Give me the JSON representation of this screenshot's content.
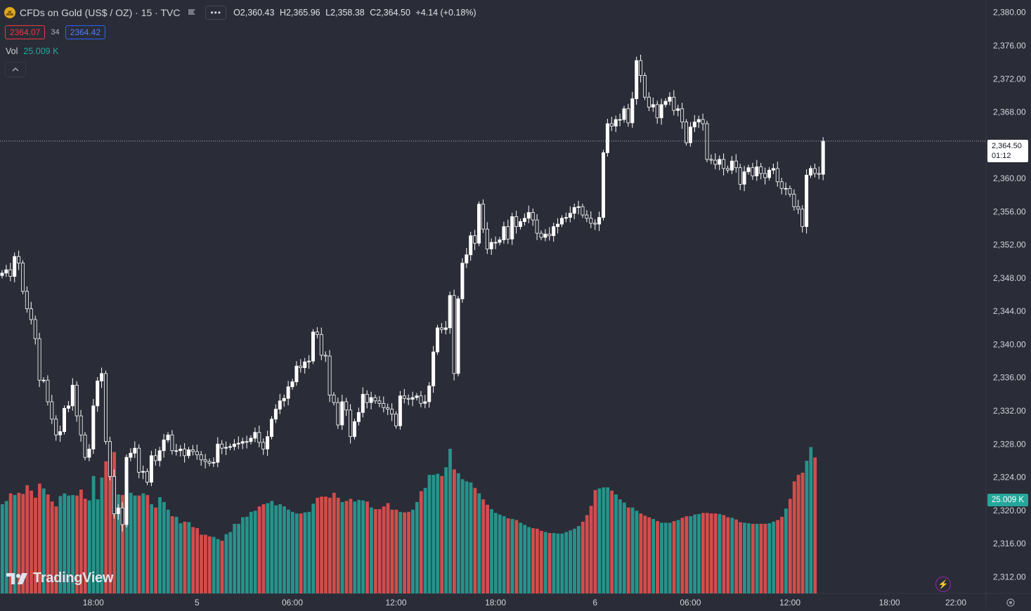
{
  "symbol": {
    "title": "CFDs on Gold (US$ / OZ) · 15 · TVC",
    "more": "•••",
    "icon": "gold-bars-icon"
  },
  "ohlc": {
    "open": "O2,360.43",
    "high": "H2,365.96",
    "low": "L2,358.38",
    "close": "C2,364.50",
    "change": "+4.14 (+0.18%)"
  },
  "trade": {
    "sell": "2364.07",
    "spread": "34",
    "buy": "2364.42"
  },
  "volume": {
    "label": "Vol",
    "value": "25.009 K",
    "axis_label": "25.009 K"
  },
  "last_price": {
    "value": "2,364.50",
    "countdown": "01:12"
  },
  "branding": {
    "name": "TradingView"
  },
  "colors": {
    "background": "#2a2c37",
    "up": "#ffffff",
    "down": "#ffffff",
    "vol_up": "#26a69a",
    "vol_down": "#ef5350",
    "text": "#d1d4dc"
  },
  "chart_data": {
    "type": "candlestick",
    "interval": "15",
    "y_axis": {
      "ticks": [
        "2,380.00",
        "2,376.00",
        "2,372.00",
        "2,368.00",
        "2,364.00",
        "2,360.00",
        "2,356.00",
        "2,352.00",
        "2,348.00",
        "2,344.00",
        "2,340.00",
        "2,336.00",
        "2,332.00",
        "2,328.00",
        "2,324.00",
        "2,320.00",
        "2,316.00",
        "2,312.00"
      ],
      "ylim": [
        2310.0,
        2381.5
      ]
    },
    "x_axis": {
      "ticks": [
        "18:00",
        "5",
        "06:00",
        "12:00",
        "18:00",
        "6",
        "06:00",
        "12:00",
        "18:00",
        "22:00"
      ]
    },
    "closes": [
      2348.6,
      2349.0,
      2348.2,
      2350.6,
      2349.8,
      2346.4,
      2344.3,
      2343.0,
      2340.7,
      2335.7,
      2335.7,
      2333.1,
      2331.0,
      2329.1,
      2329.5,
      2332.3,
      2332.6,
      2335.1,
      2331.4,
      2329.1,
      2326.4,
      2327.4,
      2332.6,
      2335.6,
      2336.5,
      2328.3,
      2324.1,
      2319.6,
      2320.3,
      2318.3,
      2326.4,
      2326.9,
      2327.5,
      2324.6,
      2324.7,
      2323.4,
      2326.6,
      2326.0,
      2327.2,
      2328.5,
      2329.1,
      2327.2,
      2327.2,
      2327.4,
      2326.6,
      2327.3,
      2327.1,
      2326.7,
      2326.1,
      2325.9,
      2325.7,
      2325.8,
      2328.0,
      2327.5,
      2327.6,
      2327.7,
      2328.0,
      2328.1,
      2328.3,
      2328.3,
      2328.7,
      2329.4,
      2328.2,
      2327.4,
      2328.9,
      2331.0,
      2332.2,
      2333.2,
      2333.5,
      2334.9,
      2335.5,
      2337.4,
      2337.2,
      2337.9,
      2338.0,
      2341.5,
      2341.2,
      2338.7,
      2338.6,
      2333.9,
      2333.0,
      2330.3,
      2333.1,
      2332.1,
      2328.9,
      2330.7,
      2331.8,
      2334.0,
      2333.0,
      2333.6,
      2333.2,
      2332.9,
      2332.4,
      2332.2,
      2331.6,
      2330.2,
      2333.8,
      2333.5,
      2333.4,
      2333.6,
      2333.8,
      2332.9,
      2333.1,
      2335.0,
      2339.1,
      2342.0,
      2341.8,
      2342.0,
      2345.9,
      2336.5,
      2345.5,
      2349.8,
      2350.8,
      2353.1,
      2352.2,
      2356.9,
      2353.9,
      2351.5,
      2352.3,
      2352.3,
      2352.6,
      2354.2,
      2352.7,
      2355.4,
      2354.2,
      2354.8,
      2355.2,
      2355.9,
      2355.0,
      2353.4,
      2352.9,
      2353.3,
      2353.1,
      2354.2,
      2354.5,
      2355.2,
      2355.3,
      2355.8,
      2356.5,
      2356.6,
      2355.6,
      2355.2,
      2354.6,
      2354.5,
      2355.3,
      2363.1,
      2366.6,
      2366.3,
      2367.1,
      2367.1,
      2368.4,
      2366.7,
      2369.6,
      2374.2,
      2372.4,
      2369.8,
      2368.6,
      2368.9,
      2367.3,
      2368.9,
      2369.3,
      2369.8,
      2368.2,
      2368.4,
      2366.8,
      2364.3,
      2366.2,
      2366.8,
      2367.1,
      2366.6,
      2362.3,
      2362.2,
      2361.7,
      2362.3,
      2361.2,
      2361.0,
      2362.1,
      2361.3,
      2359.3,
      2360.8,
      2361.3,
      2360.3,
      2361.4,
      2360.6,
      2360.1,
      2361.0,
      2361.2,
      2359.6,
      2358.8,
      2358.8,
      2358.1,
      2356.6,
      2356.3,
      2354.2,
      2360.4,
      2361.2,
      2360.6,
      2360.5,
      2364.5
    ],
    "volumes": [
      16.4,
      17.0,
      18.4,
      18.1,
      18.5,
      18.3,
      19.9,
      18.9,
      17.6,
      20.2,
      19.3,
      18.2,
      16.9,
      16.0,
      17.9,
      18.4,
      18.0,
      18.1,
      18.0,
      19.1,
      17.4,
      17.1,
      21.6,
      17.3,
      21.3,
      24.3,
      26.1,
      26.0,
      18.2,
      18.1,
      19.7,
      18.5,
      18.0,
      18.0,
      18.4,
      18.1,
      16.4,
      15.8,
      17.7,
      16.8,
      15.4,
      14.2,
      14.1,
      12.9,
      13.2,
      13.1,
      12.2,
      12.0,
      10.8,
      10.8,
      10.5,
      10.4,
      10.0,
      9.7,
      10.9,
      11.3,
      12.8,
      12.8,
      14.0,
      14.1,
      15.0,
      15.2,
      16.0,
      16.4,
      16.6,
      17.0,
      16.2,
      16.4,
      16.0,
      15.4,
      15.0,
      14.7,
      14.7,
      14.9,
      15.0,
      16.5,
      17.6,
      17.8,
      17.8,
      17.6,
      18.5,
      17.6,
      16.8,
      17.0,
      17.4,
      16.9,
      17.2,
      17.1,
      16.9,
      15.8,
      15.5,
      15.5,
      16.0,
      16.6,
      15.4,
      15.4,
      15.0,
      14.9,
      15.0,
      15.4,
      16.8,
      18.8,
      19.4,
      21.8,
      21.8,
      22.0,
      21.6,
      23.2,
      26.6,
      22.8,
      22.1,
      21.0,
      20.6,
      20.4,
      19.4,
      18.4,
      17.3,
      16.3,
      15.5,
      14.8,
      14.5,
      14.2,
      13.8,
      13.7,
      13.5,
      13.0,
      12.6,
      12.2,
      12.0,
      11.9,
      11.5,
      11.3,
      11.1,
      11.1,
      11.0,
      11.0,
      11.3,
      11.6,
      11.9,
      12.4,
      13.2,
      14.4,
      16.1,
      19.0,
      19.3,
      19.5,
      19.5,
      18.9,
      18.2,
      17.3,
      16.7,
      15.8,
      15.8,
      15.2,
      14.7,
      14.3,
      14.0,
      13.7,
      13.3,
      13.0,
      13.0,
      13.0,
      13.3,
      13.5,
      13.9,
      14.2,
      14.2,
      14.5,
      14.6,
      14.8,
      14.8,
      14.7,
      14.7,
      14.6,
      14.4,
      14.0,
      13.9,
      13.6,
      13.1,
      13.0,
      12.9,
      12.8,
      12.8,
      12.8,
      12.8,
      12.9,
      13.2,
      13.5,
      14.1,
      15.6,
      17.4,
      20.6,
      21.8,
      22.2,
      24.4,
      26.9,
      25.0
    ]
  }
}
